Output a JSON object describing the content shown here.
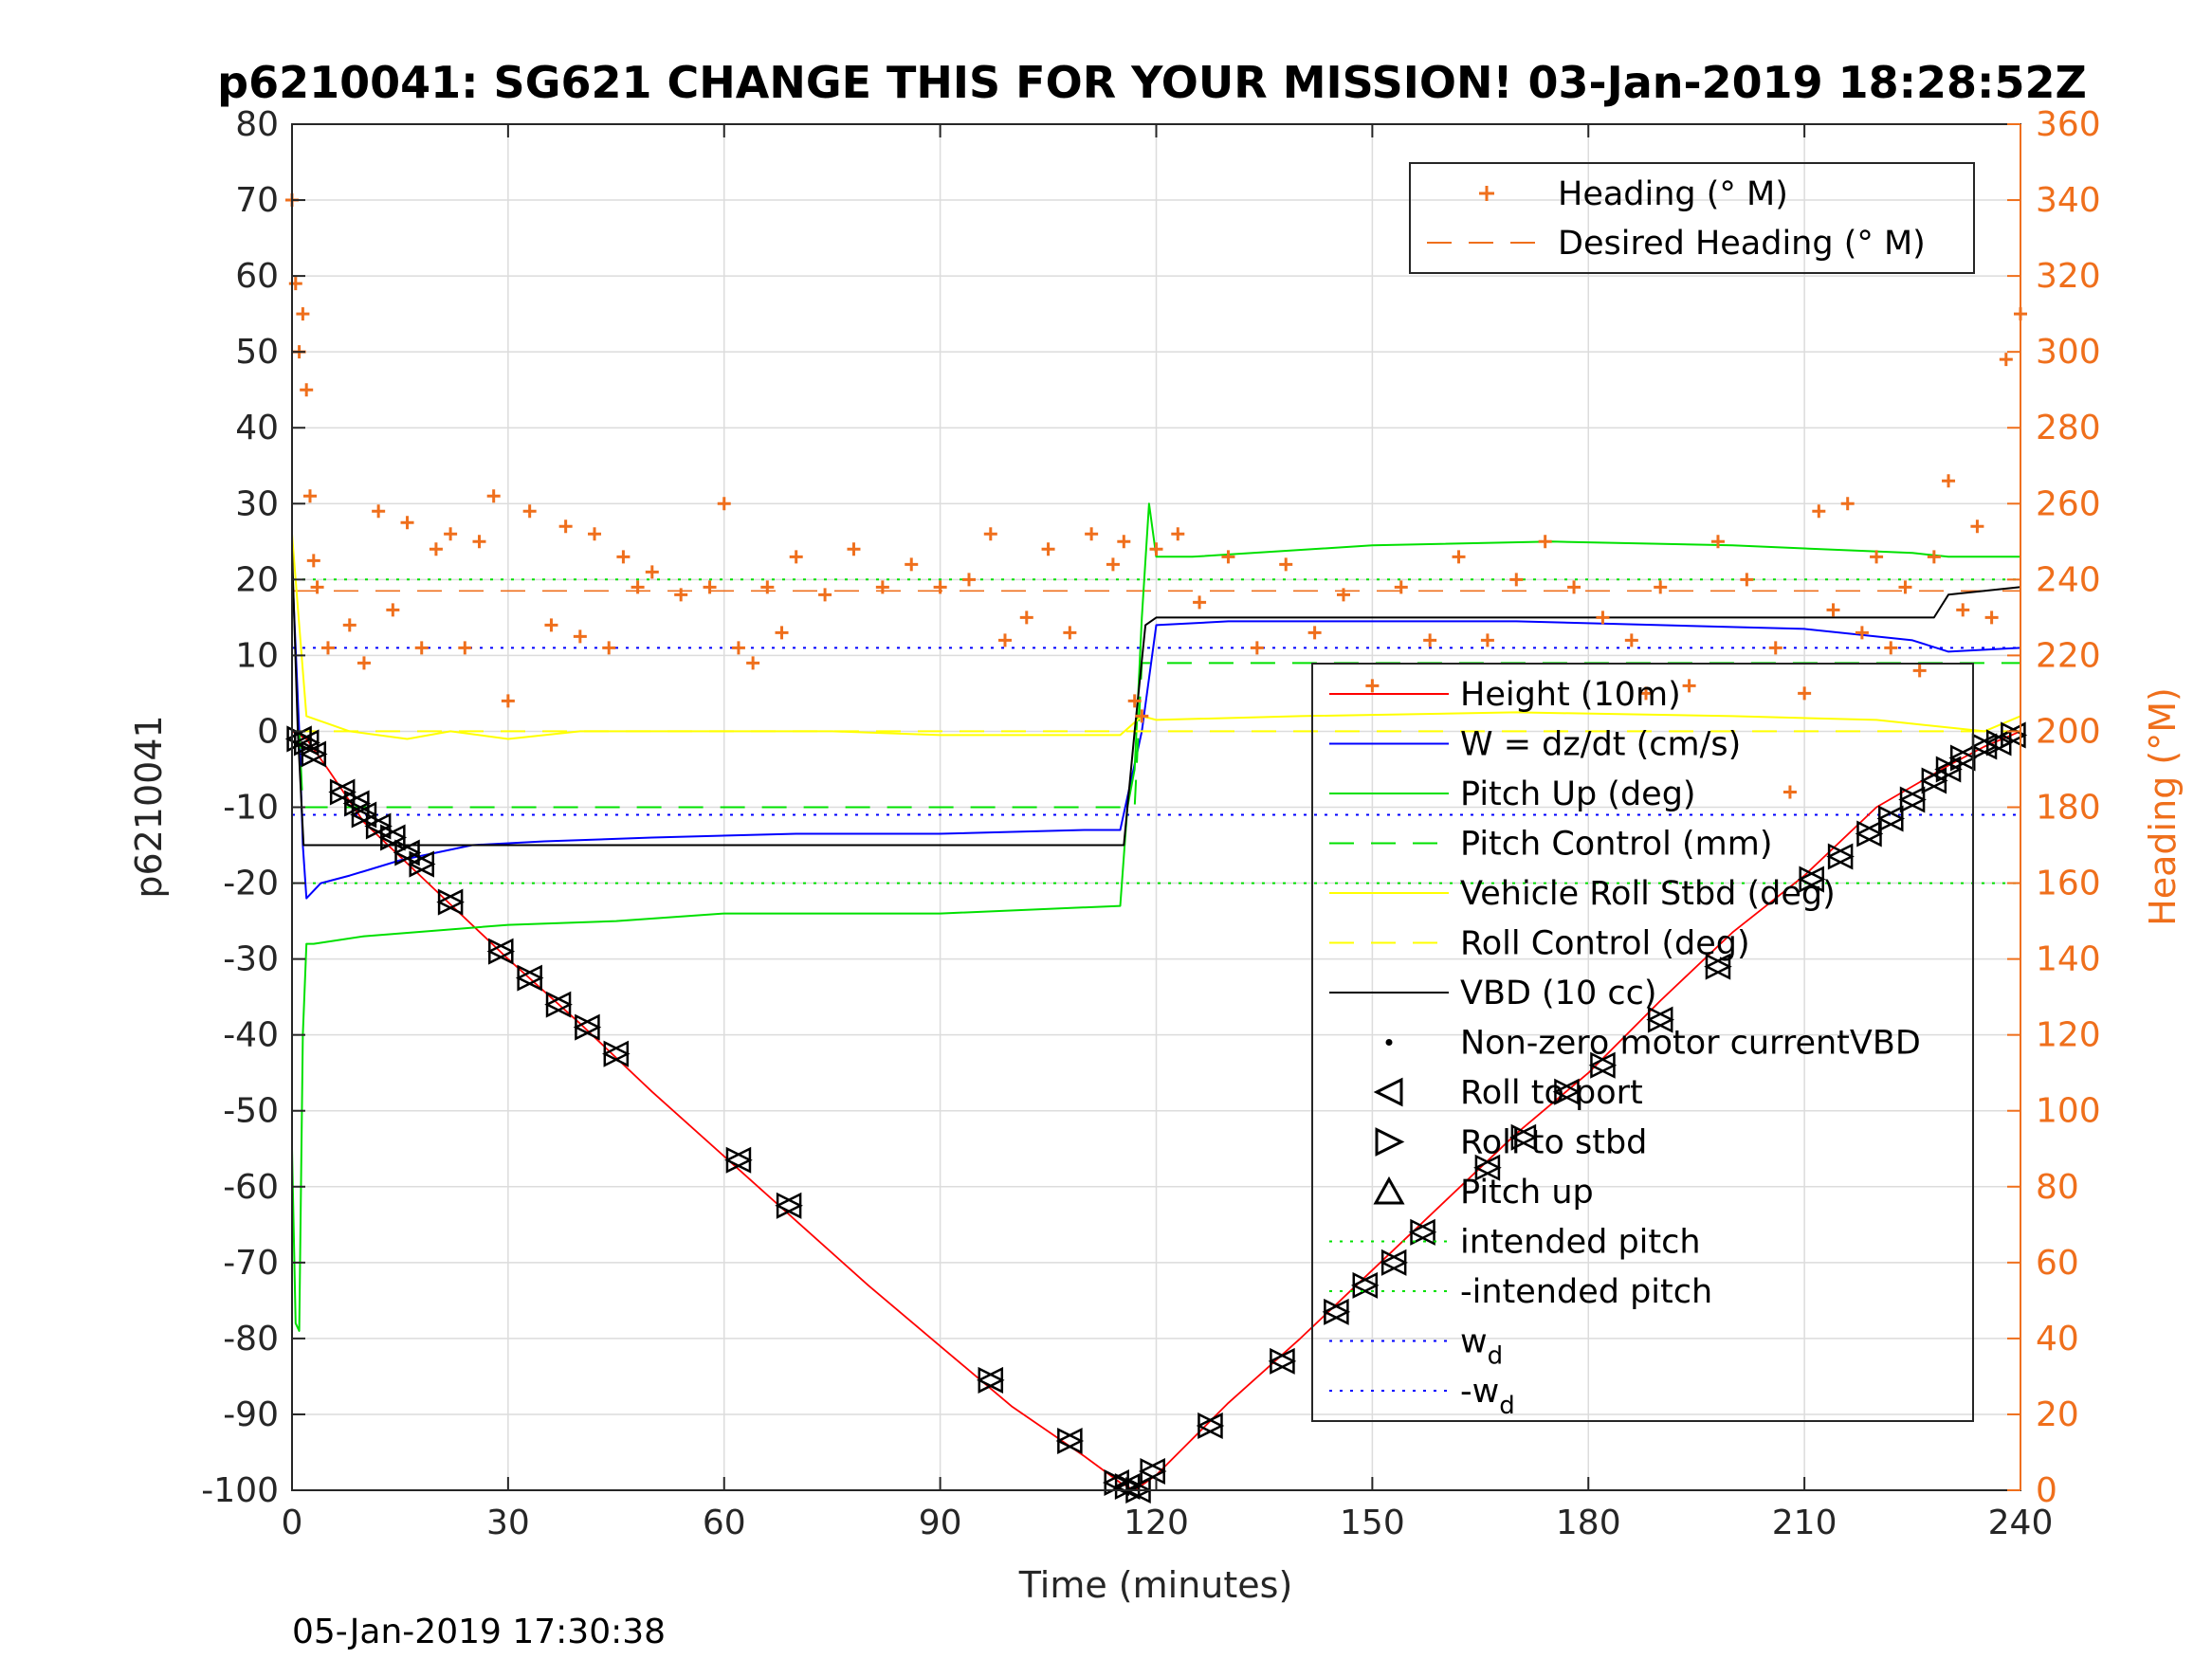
{
  "chart_data": {
    "type": "line",
    "title": "p6210041: SG621 CHANGE THIS FOR YOUR MISSION! 03-Jan-2019 18:28:52Z",
    "xlabel": "Time (minutes)",
    "ylabel": "p6210041",
    "y2label": "Heading (°M)",
    "xlim": [
      0,
      240
    ],
    "ylim": [
      -100,
      80
    ],
    "y2lim": [
      0,
      360
    ],
    "xticks": [
      0,
      30,
      60,
      90,
      120,
      150,
      180,
      210,
      240
    ],
    "yticks": [
      80,
      70,
      60,
      50,
      40,
      30,
      20,
      10,
      0,
      -10,
      -20,
      -30,
      -40,
      -50,
      -60,
      -70,
      -80,
      -90,
      -100
    ],
    "y2ticks": [
      360,
      340,
      320,
      300,
      280,
      260,
      240,
      220,
      200,
      180,
      160,
      140,
      120,
      100,
      80,
      60,
      40,
      20,
      0
    ],
    "grid": true,
    "timestamp": "05-Jan-2019 17:30:38",
    "colors": {
      "heading": "#ef6f1c",
      "height": "#ff0000",
      "w": "#0000ff",
      "pitch": "#00e000",
      "roll": "#ffff00",
      "vbd": "#000000"
    },
    "legend_heading": {
      "placement": "top-right",
      "entries": [
        {
          "label": "Heading (° M)",
          "marker": "plus",
          "color": "#ef6f1c"
        },
        {
          "label": "Desired Heading (° M)",
          "line": "dashed",
          "color": "#ef6f1c"
        }
      ]
    },
    "legend_main": {
      "placement": "bottom-right",
      "entries": [
        {
          "label": "Height (10m)",
          "line": "solid",
          "color": "#ff0000"
        },
        {
          "label": "W = dz/dt (cm/s)",
          "line": "solid",
          "color": "#0000ff"
        },
        {
          "label": "Pitch Up (deg)",
          "line": "solid",
          "color": "#00e000"
        },
        {
          "label": "Pitch Control (mm)",
          "line": "dashed",
          "color": "#00e000"
        },
        {
          "label": "Vehicle Roll Stbd (deg)",
          "line": "solid",
          "color": "#ffff00"
        },
        {
          "label": "Roll Control (deg)",
          "line": "dashed",
          "color": "#ffff00"
        },
        {
          "label": "VBD (10 cc)",
          "line": "solid",
          "color": "#000000"
        },
        {
          "label": "Non-zero motor currentVBD",
          "marker": "dot",
          "color": "#000000"
        },
        {
          "label": "Roll to port",
          "marker": "triangle-left",
          "color": "#000000"
        },
        {
          "label": "Roll to stbd",
          "marker": "triangle-right",
          "color": "#000000"
        },
        {
          "label": "Pitch up",
          "marker": "triangle-up",
          "color": "#000000"
        },
        {
          "label": "intended pitch",
          "line": "dotted",
          "color": "#00e000"
        },
        {
          "label": "-intended pitch",
          "line": "dotted",
          "color": "#00e000"
        },
        {
          "label": "w",
          "sub": "d",
          "line": "dotted",
          "color": "#0000ff"
        },
        {
          "label": "-w",
          "sub": "d",
          "line": "dotted",
          "color": "#0000ff"
        }
      ]
    },
    "series": [
      {
        "name": "Height (10m)",
        "axis": "left",
        "x": [
          0,
          2,
          5,
          10,
          20,
          30,
          40,
          50,
          60,
          70,
          80,
          90,
          100,
          110,
          115,
          117,
          120,
          130,
          140,
          150,
          160,
          170,
          180,
          190,
          200,
          210,
          220,
          230,
          235,
          240
        ],
        "y": [
          0,
          -1,
          -5,
          -12,
          -21,
          -30,
          -38.5,
          -47.5,
          -56,
          -64.5,
          -73,
          -81,
          -89,
          -95.5,
          -99,
          -100,
          -98,
          -88.5,
          -80,
          -71,
          -62,
          -53,
          -45,
          -35.5,
          -26.5,
          -19,
          -10,
          -4.5,
          -2,
          0
        ]
      },
      {
        "name": "W = dz/dt (cm/s)",
        "axis": "left",
        "x": [
          0,
          1,
          1.5,
          2,
          4,
          8,
          15,
          25,
          35,
          50,
          70,
          90,
          110,
          115,
          118,
          120,
          130,
          150,
          170,
          190,
          210,
          225,
          230,
          240
        ],
        "y": [
          22,
          0,
          -15,
          -22,
          -20,
          -19,
          -17,
          -15,
          -14.5,
          -14,
          -13.5,
          -13.5,
          -13,
          -13,
          0,
          14,
          14.5,
          14.5,
          14.5,
          14,
          13.5,
          12,
          10.5,
          11
        ]
      },
      {
        "name": "Pitch Up (deg)",
        "axis": "left",
        "x": [
          0,
          0.5,
          1,
          1.5,
          2,
          3,
          10,
          30,
          45,
          60,
          90,
          115,
          116,
          117,
          118,
          119,
          120,
          125,
          150,
          175,
          200,
          225,
          230,
          240
        ],
        "y": [
          -55,
          -78,
          -79,
          -40,
          -28,
          -28,
          -27,
          -25.5,
          -25,
          -24,
          -24,
          -23,
          -10,
          -5,
          15,
          30,
          23,
          23,
          24.5,
          25,
          24.5,
          23.5,
          23,
          23
        ]
      },
      {
        "name": "Pitch Control (mm)",
        "axis": "left",
        "x": [
          0,
          1,
          1.5,
          117,
          118,
          240
        ],
        "y": [
          0,
          0,
          -10,
          -10,
          9,
          9
        ]
      },
      {
        "name": "Vehicle Roll Stbd (deg)",
        "axis": "left",
        "x": [
          0,
          2,
          8,
          16,
          22,
          30,
          40,
          60,
          75,
          90,
          115,
          118,
          120,
          140,
          170,
          200,
          220,
          235,
          240
        ],
        "y": [
          26,
          2,
          0,
          -1,
          0,
          -1,
          0,
          0,
          0,
          -0.5,
          -0.5,
          2,
          1.5,
          2,
          2.5,
          2,
          1.5,
          0,
          2
        ]
      },
      {
        "name": "Roll Control (deg)",
        "axis": "left",
        "x": [
          0,
          240
        ],
        "y": [
          0,
          0
        ]
      },
      {
        "name": "VBD (10 cc)",
        "axis": "left",
        "x": [
          0,
          0.8,
          1.6,
          115.5,
          117,
          118.5,
          120,
          228,
          230,
          240
        ],
        "y": [
          24,
          0,
          -15,
          -15,
          0,
          14,
          15,
          15,
          18,
          19
        ]
      },
      {
        "name": "Heading (° M)",
        "axis": "right",
        "marker": "plus",
        "x": [
          0,
          0.5,
          1,
          1.5,
          2,
          2.5,
          3,
          3.5,
          5,
          8,
          10,
          12,
          14,
          16,
          18,
          20,
          22,
          24,
          26,
          28,
          30,
          33,
          36,
          38,
          40,
          42,
          44,
          46,
          48,
          50,
          54,
          58,
          60,
          62,
          64,
          66,
          68,
          70,
          74,
          78,
          82,
          86,
          90,
          94,
          97,
          99,
          102,
          105,
          108,
          111,
          114,
          115.5,
          117,
          118,
          120,
          123,
          126,
          130,
          134,
          138,
          142,
          146,
          150,
          154,
          158,
          162,
          166,
          170,
          174,
          178,
          182,
          186,
          188,
          190,
          194,
          198,
          202,
          206,
          208,
          210,
          212,
          214,
          216,
          218,
          220,
          222,
          224,
          226,
          228,
          230,
          232,
          234,
          236,
          238,
          240
        ],
        "y": [
          340,
          318,
          300,
          310,
          290,
          262,
          245,
          238,
          222,
          228,
          218,
          258,
          232,
          255,
          222,
          248,
          252,
          222,
          250,
          262,
          208,
          258,
          228,
          254,
          225,
          252,
          222,
          246,
          238,
          242,
          236,
          238,
          260,
          222,
          218,
          238,
          226,
          246,
          236,
          248,
          238,
          244,
          238,
          240,
          252,
          224,
          230,
          248,
          226,
          252,
          244,
          250,
          208,
          204,
          248,
          252,
          234,
          246,
          222,
          244,
          226,
          236,
          212,
          238,
          224,
          246,
          224,
          240,
          250,
          238,
          230,
          224,
          210,
          238,
          212,
          250,
          240,
          222,
          184,
          210,
          258,
          232,
          260,
          226,
          246,
          222,
          238,
          216,
          246,
          266,
          232,
          254,
          230,
          298,
          310
        ]
      },
      {
        "name": "Desired Heading (° M)",
        "axis": "right",
        "line": "dashed",
        "x": [
          0,
          240
        ],
        "y": [
          237,
          237
        ]
      },
      {
        "name": "intended pitch",
        "axis": "left",
        "line": "dotted",
        "x": [
          0,
          240
        ],
        "y": [
          20,
          20
        ]
      },
      {
        "name": "-intended pitch",
        "axis": "left",
        "line": "dotted",
        "x": [
          0,
          240
        ],
        "y": [
          -20,
          -20
        ]
      },
      {
        "name": "w d",
        "axis": "left",
        "line": "dotted",
        "x": [
          0,
          240
        ],
        "y": [
          11,
          11
        ]
      },
      {
        "name": "-w d",
        "axis": "left",
        "line": "dotted",
        "x": [
          0,
          240
        ],
        "y": [
          -11,
          -11
        ]
      }
    ],
    "roll_markers": [
      [
        1,
        -1
      ],
      [
        2,
        -1.5
      ],
      [
        3,
        -3
      ],
      [
        7,
        -8
      ],
      [
        9,
        -9.5
      ],
      [
        10,
        -11
      ],
      [
        12,
        -12.5
      ],
      [
        14,
        -14
      ],
      [
        16,
        -16
      ],
      [
        18,
        -17.5
      ],
      [
        22,
        -22.5
      ],
      [
        29,
        -29
      ],
      [
        33,
        -32.5
      ],
      [
        37,
        -36
      ],
      [
        41,
        -39
      ],
      [
        45,
        -42.5
      ],
      [
        62,
        -56.5
      ],
      [
        69,
        -62.5
      ],
      [
        97,
        -85.5
      ],
      [
        108,
        -93.5
      ],
      [
        114.5,
        -99
      ],
      [
        116,
        -99.5
      ],
      [
        117.5,
        -100
      ],
      [
        119.5,
        -97.5
      ],
      [
        127.5,
        -91.5
      ],
      [
        137.5,
        -83
      ],
      [
        145,
        -76.5
      ],
      [
        149,
        -73
      ],
      [
        153,
        -70
      ],
      [
        157,
        -66
      ],
      [
        166,
        -57.5
      ],
      [
        171,
        -53.5
      ],
      [
        177,
        -47.5
      ],
      [
        182,
        -44
      ],
      [
        190,
        -38
      ],
      [
        198,
        -31
      ],
      [
        211,
        -19.5
      ],
      [
        215,
        -16.5
      ],
      [
        219,
        -13.5
      ],
      [
        222,
        -11.5
      ],
      [
        225,
        -9
      ],
      [
        228,
        -6.5
      ],
      [
        230,
        -5
      ],
      [
        232,
        -3.5
      ],
      [
        235,
        -2
      ],
      [
        237,
        -1.5
      ],
      [
        239,
        -0.5
      ]
    ]
  }
}
